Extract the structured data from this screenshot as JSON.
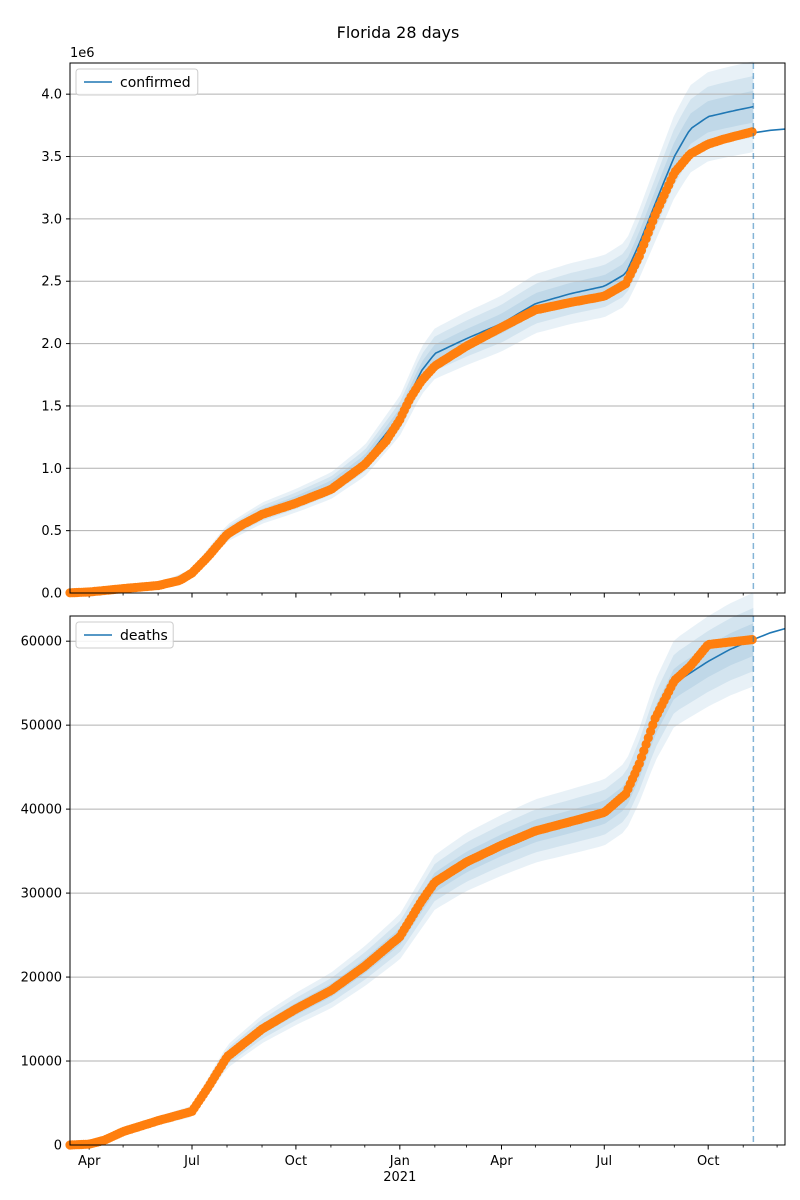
{
  "title": "Florida 28 days",
  "chart_data": [
    {
      "type": "line",
      "name": "confirmed",
      "title": "Florida 28 days",
      "xlabel": "",
      "ylabel": "",
      "offset_label": "1e6",
      "legend": [
        "confirmed"
      ],
      "legend_position": "upper-left",
      "grid": "horizontal",
      "xlim": [
        "2020-03-15",
        "2021-12-08"
      ],
      "ylim": [
        0,
        4.25
      ],
      "yticks": [
        0.0,
        0.5,
        1.0,
        1.5,
        2.0,
        2.5,
        3.0,
        3.5,
        4.0
      ],
      "ytick_labels": [
        "0.0",
        "0.5",
        "1.0",
        "1.5",
        "2.0",
        "2.5",
        "3.0",
        "3.5",
        "4.0"
      ],
      "forecast_start": "2021-11-10",
      "colors": {
        "model": "#1f77b4",
        "observed": "#ff7f0e",
        "band": "#1f77b4"
      },
      "observed": {
        "x": [
          "2020-03-15",
          "2020-04-01",
          "2020-05-01",
          "2020-06-01",
          "2020-06-20",
          "2020-07-01",
          "2020-07-15",
          "2020-08-01",
          "2020-08-15",
          "2020-09-01",
          "2020-10-01",
          "2020-11-01",
          "2020-12-01",
          "2020-12-20",
          "2021-01-01",
          "2021-01-10",
          "2021-01-20",
          "2021-02-01",
          "2021-03-01",
          "2021-04-01",
          "2021-05-01",
          "2021-06-01",
          "2021-07-01",
          "2021-07-20",
          "2021-08-01",
          "2021-08-15",
          "2021-09-01",
          "2021-09-15",
          "2021-10-01",
          "2021-10-15",
          "2021-11-01",
          "2021-11-10"
        ],
        "y": [
          0.002,
          0.008,
          0.035,
          0.06,
          0.1,
          0.16,
          0.29,
          0.47,
          0.55,
          0.63,
          0.72,
          0.83,
          1.03,
          1.22,
          1.39,
          1.56,
          1.7,
          1.82,
          1.98,
          2.13,
          2.27,
          2.33,
          2.38,
          2.48,
          2.7,
          3.03,
          3.37,
          3.52,
          3.6,
          3.64,
          3.68,
          3.7
        ]
      },
      "fit": {
        "x": [
          "2020-03-15",
          "2020-06-01",
          "2020-07-01",
          "2020-08-01",
          "2020-09-01",
          "2020-10-01",
          "2020-11-01",
          "2020-12-01",
          "2021-01-01",
          "2021-01-20",
          "2021-02-01",
          "2021-03-01",
          "2021-04-01",
          "2021-05-01",
          "2021-06-01",
          "2021-07-01",
          "2021-07-20",
          "2021-08-01",
          "2021-08-15",
          "2021-09-01",
          "2021-09-15",
          "2021-10-01",
          "2021-10-20",
          "2021-11-10"
        ],
        "y": [
          0.002,
          0.06,
          0.16,
          0.48,
          0.64,
          0.74,
          0.86,
          1.06,
          1.42,
          1.78,
          1.92,
          2.04,
          2.16,
          2.32,
          2.4,
          2.46,
          2.56,
          2.8,
          3.12,
          3.5,
          3.72,
          3.82,
          3.86,
          3.9
        ]
      },
      "forecast": {
        "x": [
          "2021-11-10",
          "2021-11-25",
          "2021-12-08"
        ],
        "y": [
          3.69,
          3.71,
          3.72
        ]
      }
    },
    {
      "type": "line",
      "name": "deaths",
      "xlabel": "",
      "ylabel": "",
      "legend": [
        "deaths"
      ],
      "legend_position": "upper-left",
      "grid": "horizontal",
      "xlim": [
        "2020-03-15",
        "2021-12-08"
      ],
      "ylim": [
        0,
        63000
      ],
      "yticks": [
        0,
        10000,
        20000,
        30000,
        40000,
        50000,
        60000
      ],
      "ytick_labels": [
        "0",
        "10000",
        "20000",
        "30000",
        "40000",
        "50000",
        "60000"
      ],
      "xticks": [
        "2020-04-01",
        "2020-07-01",
        "2020-10-01",
        "2021-01-01",
        "2021-04-01",
        "2021-07-01",
        "2021-10-01"
      ],
      "xtick_labels": [
        "Apr",
        "Jul",
        "Oct",
        "Jan\n2021",
        "Apr",
        "Jul",
        "Oct"
      ],
      "forecast_start": "2021-11-10",
      "colors": {
        "model": "#1f77b4",
        "observed": "#ff7f0e",
        "band": "#1f77b4"
      },
      "observed": {
        "x": [
          "2020-03-15",
          "2020-04-01",
          "2020-04-15",
          "2020-05-01",
          "2020-06-01",
          "2020-07-01",
          "2020-07-15",
          "2020-08-01",
          "2020-09-01",
          "2020-10-01",
          "2020-11-01",
          "2020-12-01",
          "2021-01-01",
          "2021-01-20",
          "2021-02-01",
          "2021-03-01",
          "2021-04-01",
          "2021-05-01",
          "2021-06-01",
          "2021-07-01",
          "2021-07-20",
          "2021-08-01",
          "2021-08-15",
          "2021-09-01",
          "2021-09-15",
          "2021-10-01",
          "2021-10-20",
          "2021-11-10"
        ],
        "y": [
          0,
          100,
          600,
          1600,
          2900,
          4000,
          6800,
          10500,
          13800,
          16200,
          18400,
          21300,
          24800,
          29000,
          31300,
          33700,
          35700,
          37400,
          38500,
          39600,
          41800,
          45400,
          50800,
          55300,
          57000,
          59600,
          59900,
          60200
        ]
      },
      "fit": {
        "x": [
          "2020-03-15",
          "2020-04-01",
          "2020-05-01",
          "2020-06-01",
          "2020-07-01",
          "2020-08-01",
          "2020-09-01",
          "2020-10-01",
          "2020-11-01",
          "2020-12-01",
          "2021-01-01",
          "2021-02-01",
          "2021-03-01",
          "2021-04-01",
          "2021-05-01",
          "2021-06-01",
          "2021-07-01",
          "2021-07-20",
          "2021-08-01",
          "2021-08-15",
          "2021-09-01",
          "2021-10-01",
          "2021-10-20",
          "2021-11-10"
        ],
        "y": [
          0,
          100,
          1600,
          2900,
          4000,
          10500,
          13800,
          16200,
          18400,
          21300,
          24800,
          31300,
          33700,
          35700,
          37400,
          38500,
          39600,
          41500,
          45200,
          50500,
          55000,
          57600,
          59000,
          60200
        ]
      },
      "forecast": {
        "x": [
          "2021-11-10",
          "2021-11-25",
          "2021-12-08"
        ],
        "y": [
          60200,
          61000,
          61500
        ]
      }
    }
  ]
}
